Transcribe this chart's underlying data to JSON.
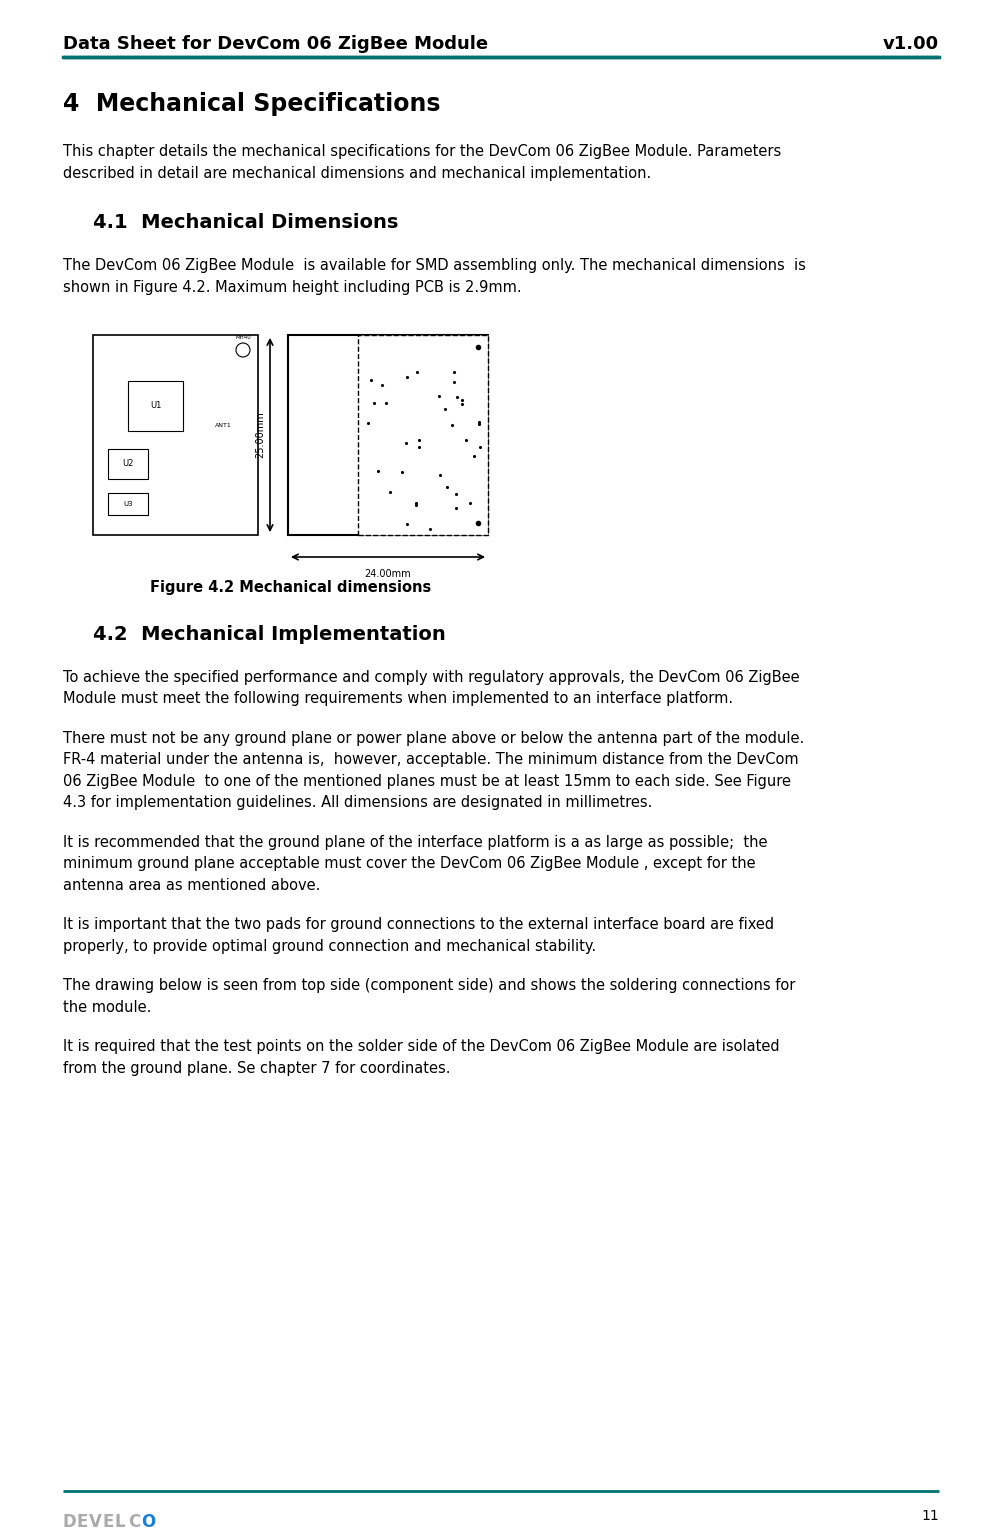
{
  "page_width": 9.94,
  "page_height": 15.33,
  "dpi": 100,
  "bg_color": "#ffffff",
  "header_title_left": "Data Sheet for DevCom 06 ZigBee Module",
  "header_title_right": "v1.00",
  "header_line_color": "#007070",
  "header_font_size": 13,
  "footer_line_color": "#007070",
  "footer_page_num": "11",
  "section_title": "4  Mechanical Specifications",
  "section_intro": "This chapter details the mechanical specifications for the DevCom 06 ZigBee Module. Parameters\ndescribed in detail are mechanical dimensions and mechanical implementation.",
  "sub_section_1": "4.1  Mechanical Dimensions",
  "sub_section_1_text": "The DevCom 06 ZigBee Module  is available for SMD assembling only. The mechanical dimensions  is\nshown in Figure 4.2. Maximum height including PCB is 2.9mm.",
  "figure_caption": "Figure 4.2 Mechanical dimensions",
  "sub_section_2": "4.2  Mechanical Implementation",
  "sub_section_2_intro": "To achieve the specified performance and comply with regulatory approvals, the DevCom 06 ZigBee\nModule must meet the following requirements when implemented to an interface platform.",
  "para1": "There must not be any ground plane or power plane above or below the antenna part of the module.\nFR-4 material under the antenna is,  however, acceptable. The minimum distance from the DevCom\n06 ZigBee Module  to one of the mentioned planes must be at least 15mm to each side. See Figure\n4.3 for implementation guidelines. All dimensions are designated in millimetres.",
  "para2": "It is recommended that the ground plane of the interface platform is a as large as possible;  the\nminimum ground plane acceptable must cover the DevCom 06 ZigBee Module , except for the\nantenna area as mentioned above.",
  "para3": "It is important that the two pads for ground connections to the external interface board are fixed\nproperly, to provide optimal ground connection and mechanical stability.",
  "para4": "The drawing below is seen from top side (component side) and shows the soldering connections for\nthe module.",
  "para5": "It is required that the test points on the solder side of the DevCom 06 ZigBee Module are isolated\nfrom the ground plane. Se chapter 7 for coordinates.",
  "teal_color": "#007070",
  "text_color": "#000000",
  "logo_text": "DEVELCO",
  "body_font_size": 10.5,
  "section_font_size": 17,
  "subsection_font_size": 14
}
